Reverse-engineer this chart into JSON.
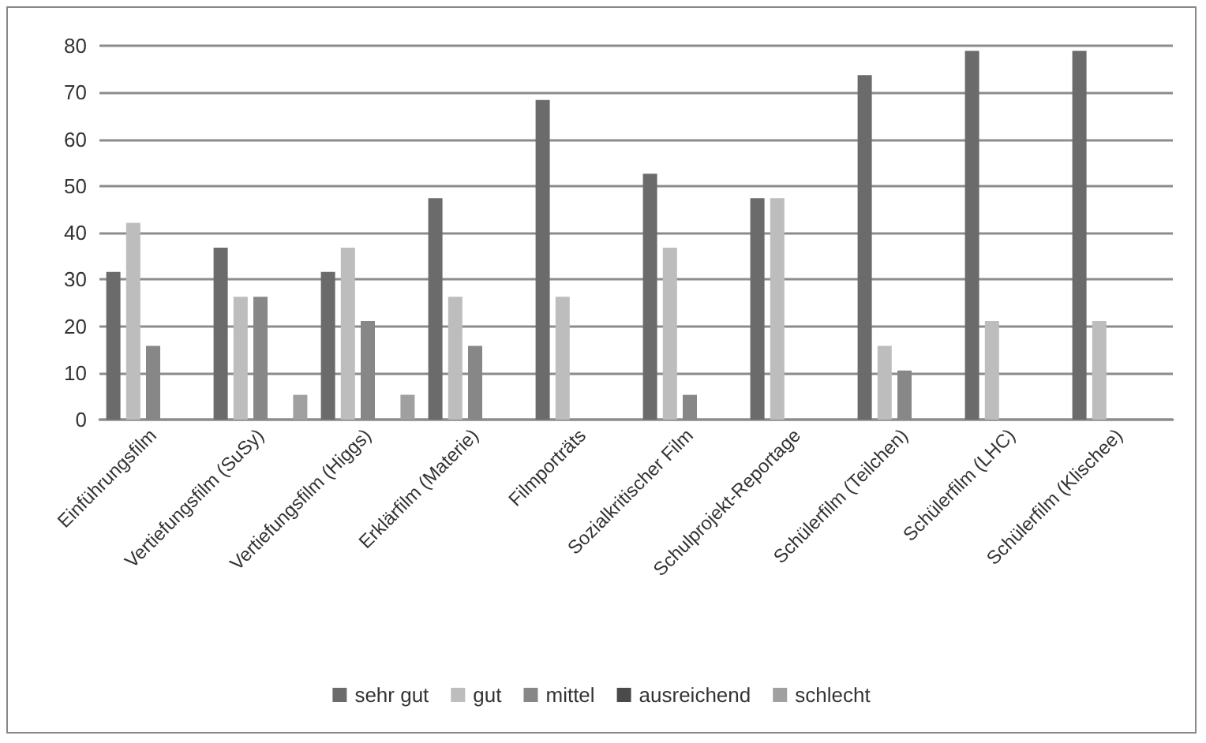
{
  "chart_data": {
    "type": "bar",
    "categories": [
      "Einführungsfilm",
      "Vertiefungsfilm (SuSy)",
      "Vertiefungsfilm (Higgs)",
      "Erklärfilm (Materie)",
      "Filmporträts",
      "Sozialkritischer Film",
      "Schulprojekt-Reportage",
      "Schülerfilm (Teilchen)",
      "Schülerfilm (LHC)",
      "Schülerfilm (Klischee)"
    ],
    "series": [
      {
        "name": "sehr gut",
        "color": "#6b6b6b",
        "values": [
          31.6,
          36.8,
          31.6,
          47.4,
          68.4,
          52.6,
          47.4,
          73.7,
          78.9,
          78.9
        ]
      },
      {
        "name": "gut",
        "color": "#bdbdbd",
        "values": [
          42.1,
          26.3,
          36.8,
          26.3,
          26.3,
          36.8,
          47.4,
          15.8,
          21.1,
          21.1
        ]
      },
      {
        "name": "mittel",
        "color": "#878787",
        "values": [
          15.8,
          26.3,
          21.1,
          15.8,
          0,
          5.3,
          0,
          10.5,
          0,
          0
        ]
      },
      {
        "name": "ausreichend",
        "color": "#4a4a4a",
        "values": [
          0,
          0,
          0,
          0,
          0,
          0,
          0,
          0,
          0,
          0
        ]
      },
      {
        "name": "schlecht",
        "color": "#a0a0a0",
        "values": [
          0,
          5.3,
          5.3,
          0,
          0,
          0,
          0,
          0,
          0,
          0
        ]
      }
    ],
    "ylim": [
      0,
      80
    ],
    "yticks": [
      0,
      10,
      20,
      30,
      40,
      50,
      60,
      70,
      80
    ],
    "grid": "y",
    "legend": "bottom"
  }
}
